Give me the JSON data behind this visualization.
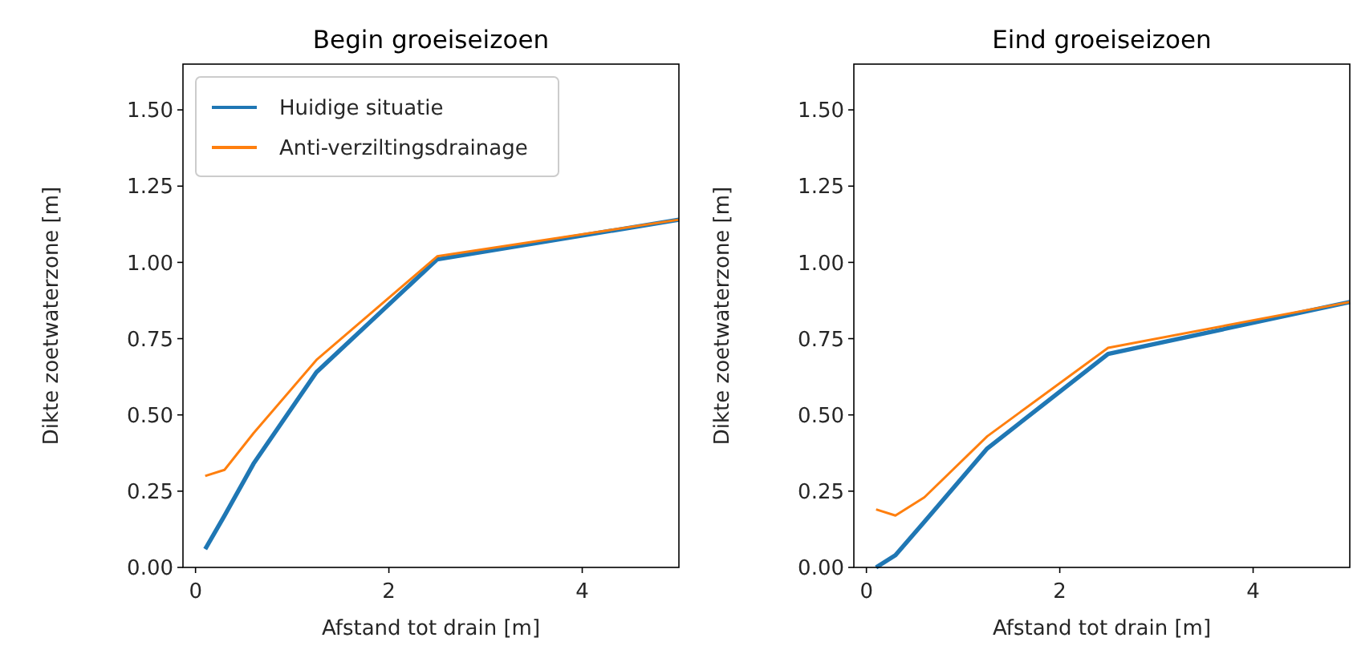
{
  "chart_data": [
    {
      "type": "line",
      "title": "Begin groeiseizoen",
      "xlabel": "Afstand tot drain [m]",
      "ylabel": "Dikte zoetwaterzone [m]",
      "x": [
        0.1,
        0.3,
        0.6,
        1.25,
        2.5,
        5
      ],
      "series": [
        {
          "name": "Huidige situatie",
          "color": "#1f77b4",
          "values": [
            0.06,
            0.17,
            0.34,
            0.64,
            1.01,
            1.14
          ]
        },
        {
          "name": "Anti-verziltingsdrainage",
          "color": "#ff7f0e",
          "values": [
            0.3,
            0.32,
            0.44,
            0.68,
            1.02,
            1.14
          ]
        }
      ],
      "xlim": [
        -0.13,
        5
      ],
      "xticks": [
        0,
        2,
        4
      ],
      "ylim": [
        0,
        1.65
      ],
      "yticks": [
        {
          "value": 0,
          "label": "0.00"
        },
        {
          "value": 0.25,
          "label": "0.25"
        },
        {
          "value": 0.5,
          "label": "0.50"
        },
        {
          "value": 0.75,
          "label": "0.75"
        },
        {
          "value": 1,
          "label": "1.00"
        },
        {
          "value": 1.25,
          "label": "1.25"
        },
        {
          "value": 1.5,
          "label": "1.50"
        }
      ],
      "legend": "top left",
      "grid": false
    },
    {
      "type": "line",
      "title": "Eind groeiseizoen",
      "xlabel": "Afstand tot drain [m]",
      "ylabel": "Dikte zoetwaterzone [m]",
      "x": [
        0.1,
        0.3,
        0.6,
        1.25,
        2.5,
        5
      ],
      "series": [
        {
          "color": "#1f77b4",
          "values": [
            0.0,
            0.04,
            0.15,
            0.39,
            0.7,
            0.87
          ]
        },
        {
          "color": "#ff7f0e",
          "values": [
            0.19,
            0.17,
            0.23,
            0.43,
            0.72,
            0.87
          ]
        }
      ],
      "xlim": [
        -0.13,
        5
      ],
      "xticks": [
        0,
        2,
        4
      ],
      "ylim": [
        0,
        1.65
      ],
      "yticks": [
        {
          "value": 0,
          "label": "0.00"
        },
        {
          "value": 0.25,
          "label": "0.25"
        },
        {
          "value": 0.5,
          "label": "0.50"
        },
        {
          "value": 0.75,
          "label": "0.75"
        },
        {
          "value": 1,
          "label": "1.00"
        },
        {
          "value": 1.25,
          "label": "1.25"
        },
        {
          "value": 1.5,
          "label": "1.50"
        }
      ],
      "grid": false
    }
  ]
}
